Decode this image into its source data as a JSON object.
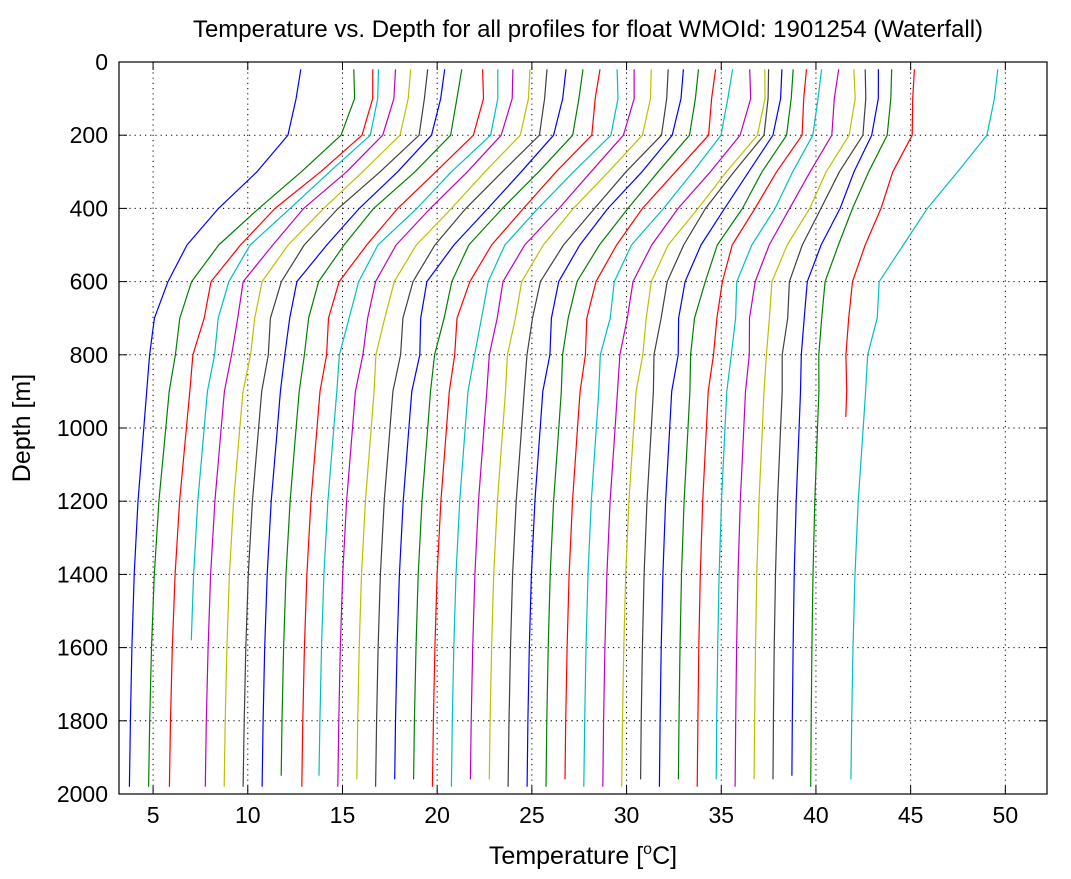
{
  "chart_data": {
    "type": "line",
    "title": "Temperature vs. Depth for all profiles for float WMOId: 1901254 (Waterfall)",
    "xlabel": "Temperature [",
    "xlabel_sup": "o",
    "xlabel_end": "C]",
    "ylabel": "Depth [m]",
    "xlim": [
      3.2,
      52.2
    ],
    "ylim": [
      0,
      2000
    ],
    "y_reversed": true,
    "grid": true,
    "x_ticks": [
      5,
      10,
      15,
      20,
      25,
      30,
      35,
      40,
      45,
      50
    ],
    "y_ticks": [
      0,
      200,
      400,
      600,
      800,
      1000,
      1200,
      1400,
      1600,
      1800,
      2000
    ],
    "x_tick_labels": [
      "5",
      "10",
      "15",
      "20",
      "25",
      "30",
      "35",
      "40",
      "45",
      "50"
    ],
    "y_tick_labels": [
      "0",
      "200",
      "400",
      "600",
      "800",
      "1000",
      "1200",
      "1400",
      "1600",
      "1800",
      "2000"
    ],
    "color_cycle": [
      "#0000ff",
      "#008000",
      "#ff0000",
      "#00bfbf",
      "#bf00bf",
      "#bfbf00",
      "#404040"
    ],
    "profile_shape": {
      "depths": [
        20,
        100,
        200,
        300,
        400,
        500,
        600,
        700,
        800,
        900,
        1000,
        1200,
        1400,
        1600,
        1800,
        1980
      ],
      "offsets": [
        9.0,
        8.9,
        8.5,
        6.7,
        4.8,
        3.1,
        1.9,
        1.5,
        1.2,
        0.95,
        0.8,
        0.5,
        0.3,
        0.18,
        0.1,
        0.05
      ]
    },
    "profiles": [
      {
        "bottom_temp": 3.7,
        "surface_temp": 12.8,
        "max_depth": 1980
      },
      {
        "bottom_temp": 4.7,
        "surface_temp": 15.6,
        "max_depth": 1980
      },
      {
        "bottom_temp": 5.8,
        "surface_temp": 16.6,
        "max_depth": 1980
      },
      {
        "bottom_temp": 6.8,
        "surface_temp": 16.9,
        "max_depth": 1580
      },
      {
        "bottom_temp": 7.7,
        "surface_temp": 17.8,
        "max_depth": 1980
      },
      {
        "bottom_temp": 8.7,
        "surface_temp": 18.6,
        "max_depth": 1980
      },
      {
        "bottom_temp": 9.7,
        "surface_temp": 19.5,
        "max_depth": 1980
      },
      {
        "bottom_temp": 10.7,
        "surface_temp": 20.4,
        "max_depth": 1980
      },
      {
        "bottom_temp": 11.7,
        "surface_temp": 21.3,
        "max_depth": 1950
      },
      {
        "bottom_temp": 12.8,
        "surface_temp": 22.4,
        "max_depth": 1980
      },
      {
        "bottom_temp": 13.7,
        "surface_temp": 23.2,
        "max_depth": 1950
      },
      {
        "bottom_temp": 14.7,
        "surface_temp": 24.0,
        "max_depth": 1980
      },
      {
        "bottom_temp": 15.7,
        "surface_temp": 24.9,
        "max_depth": 1960
      },
      {
        "bottom_temp": 16.7,
        "surface_temp": 25.8,
        "max_depth": 1980
      },
      {
        "bottom_temp": 17.7,
        "surface_temp": 26.8,
        "max_depth": 1960
      },
      {
        "bottom_temp": 18.7,
        "surface_temp": 27.7,
        "max_depth": 1960
      },
      {
        "bottom_temp": 19.7,
        "surface_temp": 28.6,
        "max_depth": 1980
      },
      {
        "bottom_temp": 20.7,
        "surface_temp": 29.5,
        "max_depth": 1980
      },
      {
        "bottom_temp": 21.7,
        "surface_temp": 30.4,
        "max_depth": 1960
      },
      {
        "bottom_temp": 22.7,
        "surface_temp": 31.3,
        "max_depth": 1960
      },
      {
        "bottom_temp": 23.7,
        "surface_temp": 32.2,
        "max_depth": 1980
      },
      {
        "bottom_temp": 24.7,
        "surface_temp": 33.0,
        "max_depth": 1980
      },
      {
        "bottom_temp": 25.7,
        "surface_temp": 33.8,
        "max_depth": 1980
      },
      {
        "bottom_temp": 26.7,
        "surface_temp": 34.7,
        "max_depth": 1960
      },
      {
        "bottom_temp": 27.7,
        "surface_temp": 35.6,
        "max_depth": 1980
      },
      {
        "bottom_temp": 28.7,
        "surface_temp": 36.5,
        "max_depth": 1980
      },
      {
        "bottom_temp": 29.7,
        "surface_temp": 37.3,
        "max_depth": 1980
      },
      {
        "bottom_temp": 30.7,
        "surface_temp": 37.5,
        "max_depth": 1960
      },
      {
        "bottom_temp": 31.7,
        "surface_temp": 38.2,
        "max_depth": 1980
      },
      {
        "bottom_temp": 32.7,
        "surface_temp": 38.8,
        "max_depth": 1960
      },
      {
        "bottom_temp": 33.7,
        "surface_temp": 39.5,
        "max_depth": 1980
      },
      {
        "bottom_temp": 34.7,
        "surface_temp": 40.3,
        "max_depth": 1960
      },
      {
        "bottom_temp": 35.7,
        "surface_temp": 41.2,
        "max_depth": 1980
      },
      {
        "bottom_temp": 36.7,
        "surface_temp": 42.0,
        "max_depth": 1960
      },
      {
        "bottom_temp": 37.7,
        "surface_temp": 42.6,
        "max_depth": 1960
      },
      {
        "bottom_temp": 38.7,
        "surface_temp": 43.3,
        "max_depth": 1950
      },
      {
        "bottom_temp": 39.7,
        "surface_temp": 44.0,
        "max_depth": 1980
      },
      {
        "bottom_temp": 41.2,
        "surface_temp": 45.2,
        "max_depth": 970
      },
      {
        "bottom_temp": 41.8,
        "surface_temp": 49.6,
        "max_depth": 1960
      }
    ]
  }
}
